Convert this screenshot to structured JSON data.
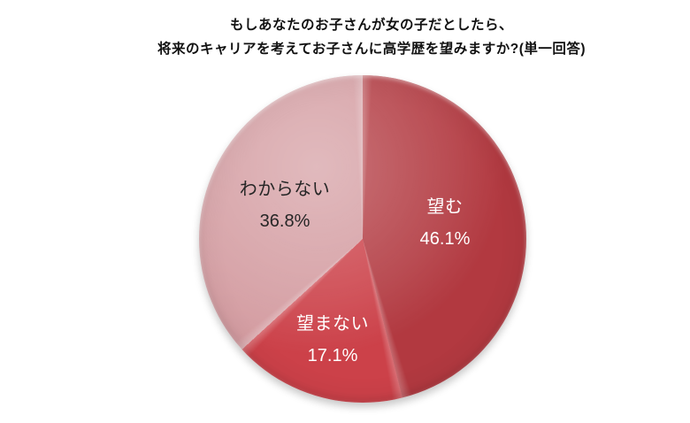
{
  "title": {
    "line1": "もしあなたのお子さんが女の子だとしたら、",
    "line2": "将来のキャリアを考えてお子さんに高学歴を望みますか?(単一回答)"
  },
  "chart_data": {
    "type": "pie",
    "title": "もしあなたのお子さんが女の子だとしたら、将来のキャリアを考えてお子さんに高学歴を望みますか?(単一回答)",
    "unit": "%",
    "start_angle_deg": 0,
    "direction": "clockwise",
    "legend": "none",
    "background_color": "#FFFFFF",
    "title_color": "#111111",
    "slices": [
      {
        "label": "望む",
        "value": 46.1,
        "display": "46.1%",
        "color": "#B23940",
        "text_color": "#FFFFFF"
      },
      {
        "label": "望まない",
        "value": 17.1,
        "display": "17.1%",
        "color": "#CC4149",
        "text_color": "#FFFFFF"
      },
      {
        "label": "わからない",
        "value": 36.8,
        "display": "36.8%",
        "color": "#D49CA1",
        "text_color": "#262626"
      }
    ]
  }
}
